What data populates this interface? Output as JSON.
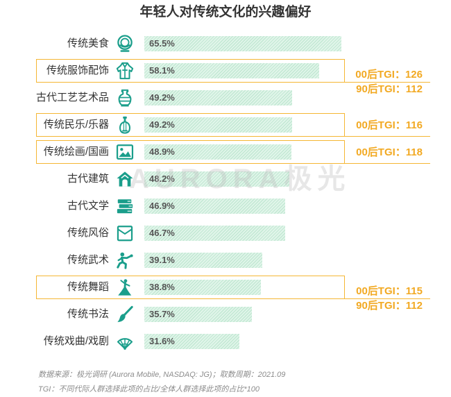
{
  "chart_data": {
    "type": "bar",
    "orientation": "horizontal",
    "title": "年轻人对传统文化的兴趣偏好",
    "categories": [
      "传统美食",
      "传统服饰配饰",
      "古代工艺艺术品",
      "传统民乐/乐器",
      "传统绘画/国画",
      "古代建筑",
      "古代文学",
      "传统风俗",
      "传统武术",
      "传统舞蹈",
      "传统书法",
      "传统戏曲/戏剧"
    ],
    "values": [
      65.5,
      58.1,
      49.2,
      49.2,
      48.9,
      48.2,
      46.9,
      46.7,
      39.1,
      38.8,
      35.7,
      31.6
    ],
    "value_labels": [
      "65.5%",
      "58.1%",
      "49.2%",
      "49.2%",
      "48.9%",
      "48.2%",
      "46.9%",
      "46.7%",
      "39.1%",
      "38.8%",
      "35.7%",
      "31.6%"
    ],
    "category_icons": [
      "bowl-icon",
      "robe-icon",
      "vase-icon",
      "pipa-icon",
      "painting-icon",
      "house-icon",
      "books-icon",
      "envelope-icon",
      "martial-arts-icon",
      "dancer-icon",
      "brush-icon",
      "fan-icon"
    ],
    "annotations": [
      {
        "category_index": 1,
        "labels": [
          "00后TGI：126",
          "90后TGI：112"
        ]
      },
      {
        "category_index": 3,
        "labels": [
          "00后TGI：116"
        ]
      },
      {
        "category_index": 4,
        "labels": [
          "00后TGI：118"
        ]
      },
      {
        "category_index": 9,
        "labels": [
          "00后TGI：115",
          "90后TGI：112"
        ]
      }
    ],
    "grid": false,
    "legend": "none"
  },
  "footnotes": {
    "source": "数据来源：极光调研 (Aurora Mobile, NASDAQ: JG)；取数周期：2021.09",
    "tgi_definition": "TGI：不同代际人群选择此项的占比/全体人群选择此项的占比*100"
  },
  "watermark": "AURORA极光",
  "colors": {
    "title": "#333333",
    "label": "#333333",
    "bar_fill": "#e1f5ea",
    "bar_hatch": "#c2e8d3",
    "value_label": "#555555",
    "icon": "#1a9e8b",
    "highlight": "#f5b633",
    "annotation_text": "#f2a922",
    "footnote": "#8c8c8c",
    "watermark": "#bdbdbd"
  }
}
